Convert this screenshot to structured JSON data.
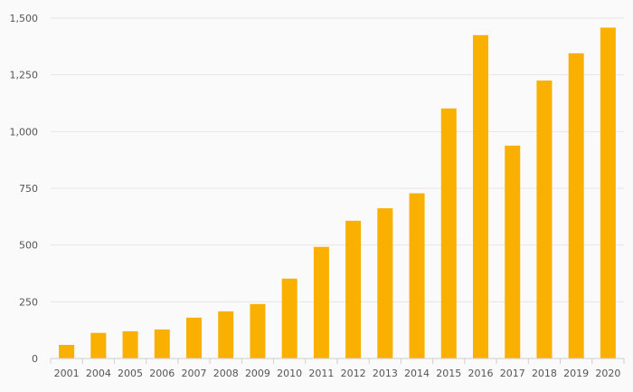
{
  "chart_data": {
    "type": "bar",
    "title": "",
    "xlabel": "",
    "ylabel": "",
    "categories": [
      "2001",
      "2004",
      "2005",
      "2006",
      "2007",
      "2008",
      "2009",
      "2010",
      "2011",
      "2012",
      "2013",
      "2014",
      "2015",
      "2016",
      "2017",
      "2018",
      "2019",
      "2020"
    ],
    "values": [
      60,
      113,
      120,
      128,
      180,
      208,
      240,
      352,
      492,
      607,
      662,
      728,
      1102,
      1425,
      938,
      1225,
      1345,
      1458
    ],
    "ylim": [
      0,
      1500
    ],
    "yticks": [
      0,
      250,
      500,
      750,
      1000,
      1250,
      1500
    ],
    "ytick_labels": [
      "0",
      "250",
      "500",
      "750",
      "1,000",
      "1,250",
      "1,500"
    ],
    "grid": true,
    "bar_color": "#f9b000"
  }
}
